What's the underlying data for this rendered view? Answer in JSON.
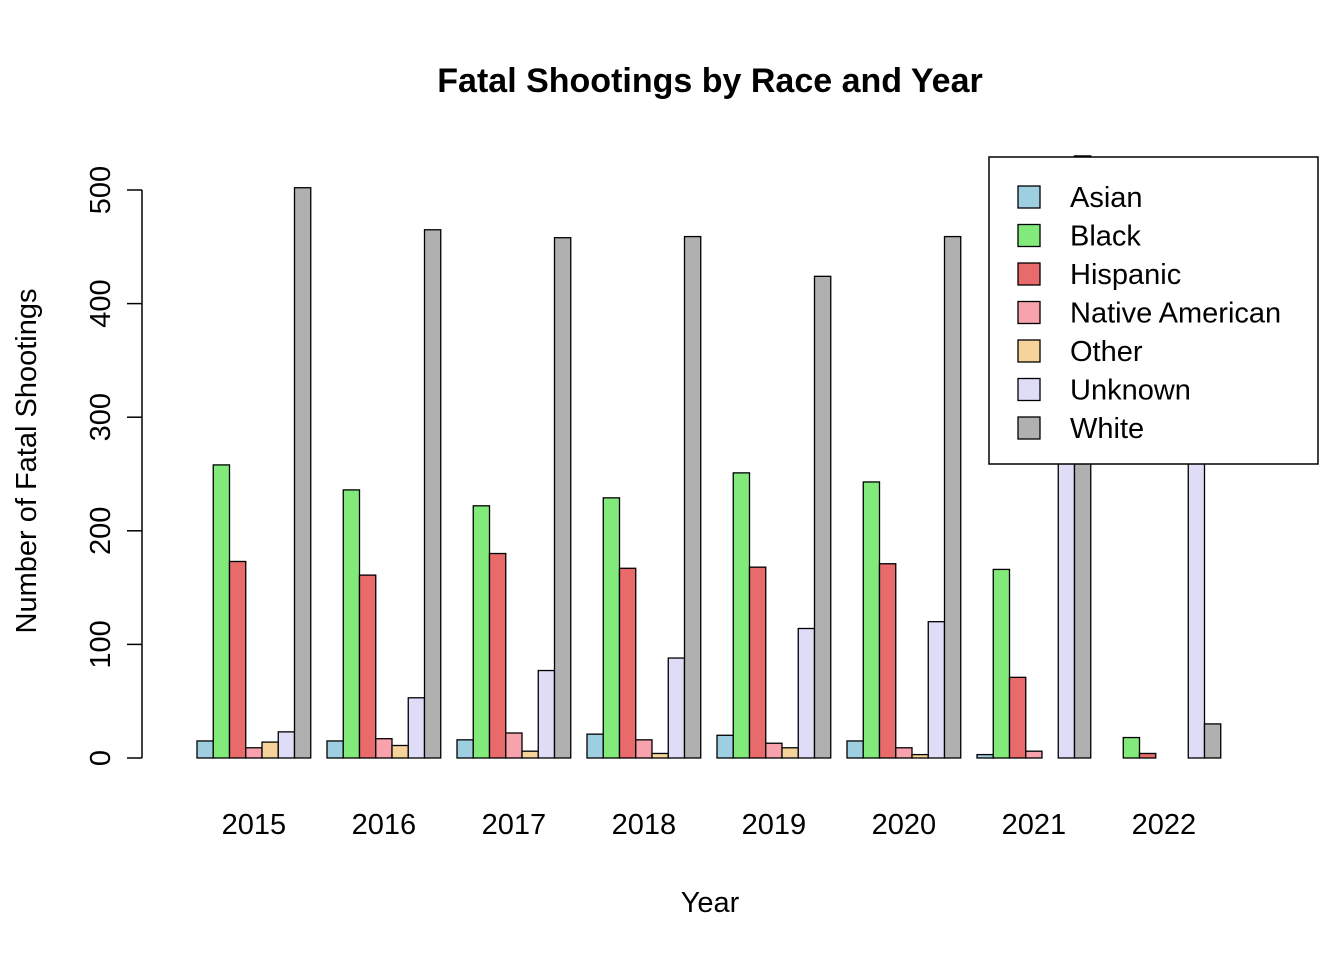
{
  "chart_data": {
    "type": "bar",
    "title": "Fatal Shootings by Race and Year",
    "xlabel": "Year",
    "ylabel": "Number of Fatal Shootings",
    "ylim": [
      0,
      500
    ],
    "yticks": [
      0,
      100,
      200,
      300,
      400,
      500
    ],
    "grid": false,
    "legend_position": "top-right",
    "categories": [
      "2015",
      "2016",
      "2017",
      "2018",
      "2019",
      "2020",
      "2021",
      "2022"
    ],
    "series": [
      {
        "name": "Asian",
        "color": "#9ecfe0",
        "values": [
          15,
          15,
          16,
          21,
          20,
          15,
          3,
          0
        ]
      },
      {
        "name": "Black",
        "color": "#82ea7b",
        "values": [
          258,
          236,
          222,
          229,
          251,
          243,
          166,
          18
        ]
      },
      {
        "name": "Hispanic",
        "color": "#e86a6a",
        "values": [
          173,
          161,
          180,
          167,
          168,
          171,
          71,
          4
        ]
      },
      {
        "name": "Native American",
        "color": "#f7a2ad",
        "values": [
          9,
          17,
          22,
          16,
          13,
          9,
          6,
          0
        ]
      },
      {
        "name": "Other",
        "color": "#f5d39b",
        "values": [
          14,
          11,
          6,
          4,
          9,
          3,
          0,
          0
        ]
      },
      {
        "name": "Unknown",
        "color": "#dedcf7",
        "values": [
          23,
          53,
          77,
          88,
          114,
          120,
          346,
          322
        ]
      },
      {
        "name": "White",
        "color": "#b0b0b0",
        "values": [
          502,
          465,
          458,
          459,
          424,
          459,
          530,
          30
        ]
      }
    ]
  }
}
